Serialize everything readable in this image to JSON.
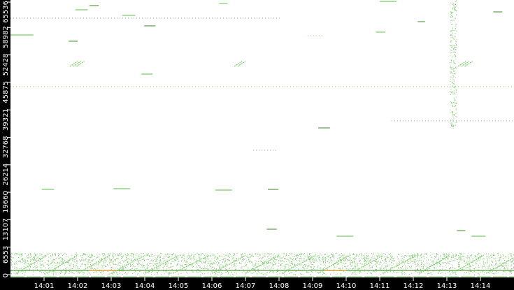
{
  "chart_data": {
    "type": "scatter",
    "title": "",
    "xlabel": "",
    "ylabel": "",
    "xlim": [
      "14:00:00",
      "14:15:00"
    ],
    "ylim": [
      0,
      65536
    ],
    "grid": false,
    "legend": "none",
    "colors": {
      "background": "#ffffff",
      "axis": "#000000",
      "tick_text": "#ffffff",
      "point": "#7dcc6a",
      "point_dark": "#5a9c4a",
      "gray": "#8a9a8a",
      "orange": "#e8a030"
    },
    "y_ticks": [
      "0",
      "6553",
      "13107",
      "19660",
      "26214",
      "32768",
      "39321",
      "45875",
      "52428",
      "58982",
      "65536"
    ],
    "x_ticks": [
      "14:01",
      "14:02",
      "14:03",
      "14:04",
      "14:05",
      "14:06",
      "14:07",
      "14:08",
      "14:09",
      "14:10",
      "14:11",
      "14:12",
      "14:13",
      "14:14"
    ],
    "dotted_lines": [
      {
        "t0": "14:00:00",
        "t1": "14:08:01",
        "port": 61200,
        "color": "gray"
      },
      {
        "t0": "14:00:00",
        "t1": "14:15:00",
        "port": 44870,
        "color": "point"
      },
      {
        "t0": "14:11:21",
        "t1": "14:15:00",
        "port": 36700,
        "color": "gray"
      },
      {
        "t0": "14:08:51",
        "t1": "14:09:19",
        "port": 57000,
        "color": "point"
      },
      {
        "t0": "14:07:14",
        "t1": "14:07:59",
        "port": 29680,
        "color": "gray"
      }
    ],
    "segments": [
      {
        "t0": "14:00:00",
        "t1": "14:00:41",
        "port": 57200,
        "color": "point"
      },
      {
        "t0": "14:00:56",
        "t1": "14:01:18",
        "port": 20340,
        "color": "point"
      },
      {
        "t0": "14:03:04",
        "t1": "14:03:34",
        "port": 20510,
        "color": "point"
      },
      {
        "t0": "14:06:06",
        "t1": "14:06:36",
        "port": 20180,
        "color": "point"
      },
      {
        "t0": "14:07:40",
        "t1": "14:07:59",
        "port": 20340,
        "color": "point_dark"
      },
      {
        "t0": "14:09:10",
        "t1": "14:09:31",
        "port": 35020,
        "color": "point_dark"
      },
      {
        "t0": "14:10:53",
        "t1": "14:11:10",
        "port": 57870,
        "color": "point"
      },
      {
        "t0": "14:03:54",
        "t1": "14:04:14",
        "port": 47860,
        "color": "point"
      },
      {
        "t0": "14:01:44",
        "t1": "14:02:00",
        "port": 55700,
        "color": "point_dark"
      },
      {
        "t0": "14:09:43",
        "t1": "14:10:13",
        "port": 9170,
        "color": "point"
      },
      {
        "t0": "14:13:44",
        "t1": "14:14:09",
        "port": 9170,
        "color": "point"
      },
      {
        "t0": "14:13:18",
        "t1": "14:13:33",
        "port": 10510,
        "color": "point_dark"
      },
      {
        "t0": "14:07:38",
        "t1": "14:07:56",
        "port": 10840,
        "color": "point_dark"
      },
      {
        "t0": "14:03:59",
        "t1": "14:04:19",
        "port": 59370,
        "color": "point_dark"
      },
      {
        "t0": "14:12:08",
        "t1": "14:12:21",
        "port": 60370,
        "color": "point_dark"
      },
      {
        "t0": "14:14:23",
        "t1": "14:14:39",
        "port": 62700,
        "color": "point_dark"
      },
      {
        "t0": "14:11:00",
        "t1": "14:11:30",
        "port": 65200,
        "color": "point"
      },
      {
        "t0": "14:06:13",
        "t1": "14:06:28",
        "port": 64700,
        "color": "point"
      },
      {
        "t0": "14:02:21",
        "t1": "14:02:38",
        "port": 64200,
        "color": "point_dark"
      },
      {
        "t0": "14:01:56",
        "t1": "14:02:18",
        "port": 63200,
        "color": "point"
      },
      {
        "t0": "14:03:20",
        "t1": "14:03:43",
        "port": 61870,
        "color": "point"
      },
      {
        "t0": "14:00:00",
        "t1": "14:15:00",
        "port": 1000,
        "color": "point_dark"
      },
      {
        "t0": "14:02:20",
        "t1": "14:03:10",
        "port": 1000,
        "color": "orange"
      },
      {
        "t0": "14:09:20",
        "t1": "14:10:00",
        "port": 1000,
        "color": "orange"
      }
    ],
    "sweeps": [
      {
        "t0": "14:00:10",
        "t1": "14:01:05",
        "p0": 300,
        "p1": 4600
      },
      {
        "t0": "14:01:05",
        "t1": "14:02:00",
        "p0": 300,
        "p1": 4600
      },
      {
        "t0": "14:02:00",
        "t1": "14:02:58",
        "p0": 300,
        "p1": 4600
      },
      {
        "t0": "14:03:00",
        "t1": "14:04:00",
        "p0": 300,
        "p1": 4600
      },
      {
        "t0": "14:04:00",
        "t1": "14:05:00",
        "p0": 300,
        "p1": 4600
      },
      {
        "t0": "14:04:50",
        "t1": "14:05:55",
        "p0": 300,
        "p1": 4600
      },
      {
        "t0": "14:06:00",
        "t1": "14:07:00",
        "p0": 300,
        "p1": 4600
      },
      {
        "t0": "14:07:00",
        "t1": "14:08:00",
        "p0": 300,
        "p1": 4600
      },
      {
        "t0": "14:08:05",
        "t1": "14:09:05",
        "p0": 300,
        "p1": 4600
      },
      {
        "t0": "14:09:10",
        "t1": "14:10:05",
        "p0": 300,
        "p1": 4600
      },
      {
        "t0": "14:10:10",
        "t1": "14:11:05",
        "p0": 300,
        "p1": 4600
      },
      {
        "t0": "14:11:05",
        "t1": "14:12:05",
        "p0": 300,
        "p1": 4600
      },
      {
        "t0": "14:12:10",
        "t1": "14:13:05",
        "p0": 300,
        "p1": 4600
      },
      {
        "t0": "14:13:10",
        "t1": "14:14:05",
        "p0": 300,
        "p1": 4600
      },
      {
        "t0": "14:14:10",
        "t1": "14:15:00",
        "p0": 300,
        "p1": 4000
      },
      {
        "t0": "14:01:46",
        "t1": "14:02:00",
        "p0": 49700,
        "p1": 50900
      },
      {
        "t0": "14:01:52",
        "t1": "14:02:06",
        "p0": 49700,
        "p1": 50900
      },
      {
        "t0": "14:01:58",
        "t1": "14:02:12",
        "p0": 49700,
        "p1": 50900
      },
      {
        "t0": "14:06:40",
        "t1": "14:06:54",
        "p0": 49700,
        "p1": 50900
      },
      {
        "t0": "14:06:46",
        "t1": "14:07:00",
        "p0": 49700,
        "p1": 50900
      },
      {
        "t0": "14:13:20",
        "t1": "14:13:34",
        "p0": 49700,
        "p1": 50900
      },
      {
        "t0": "14:13:26",
        "t1": "14:13:40",
        "p0": 49700,
        "p1": 50900
      },
      {
        "t0": "14:13:32",
        "t1": "14:13:46",
        "p0": 49700,
        "p1": 50900
      }
    ],
    "dense_regions": [
      {
        "t0": "14:00:00",
        "t1": "14:15:00",
        "p0": 0,
        "p1": 5200
      },
      {
        "t0": "14:13:05",
        "t1": "14:13:17",
        "p0": 35000,
        "p1": 65536
      }
    ]
  }
}
